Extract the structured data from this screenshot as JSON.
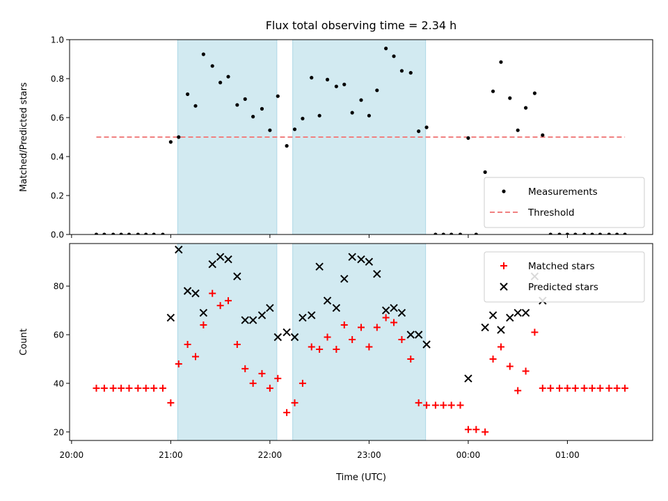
{
  "chart_data": {
    "type": "scatter",
    "title": "Flux total observing time = 2.34 h",
    "xlabel": "Time (UTC)",
    "x_unit": "hour of night (UTC); values above 24 fall after midnight",
    "xlim": [
      19.98,
      25.86
    ],
    "x_ticks": [
      20,
      21,
      22,
      23,
      24,
      25
    ],
    "x_tick_labels": [
      "20:00",
      "21:00",
      "22:00",
      "23:00",
      "00:00",
      "01:00"
    ],
    "shaded_intervals": [
      [
        21.07,
        22.07
      ],
      [
        22.23,
        23.57
      ]
    ],
    "shade_color": "#add8e6",
    "panels": [
      {
        "ylabel": "Matched/Predicted stars",
        "ylim": [
          0,
          1.0
        ],
        "y_ticks": [
          0.0,
          0.2,
          0.4,
          0.6,
          0.8,
          1.0
        ],
        "y_tick_labels": [
          "0.0",
          "0.2",
          "0.4",
          "0.6",
          "0.8",
          "1.0"
        ],
        "legend_position": "lower right",
        "threshold": {
          "name": "Threshold",
          "value": 0.5,
          "x_range": [
            20.25,
            25.58
          ],
          "color": "#f08080",
          "style": "dashed"
        },
        "series": [
          {
            "name": "Measurements",
            "marker": "dot",
            "color": "#000000",
            "points": [
              [
                20.25,
                0
              ],
              [
                20.33,
                0
              ],
              [
                20.42,
                0
              ],
              [
                20.5,
                0
              ],
              [
                20.58,
                0
              ],
              [
                20.67,
                0
              ],
              [
                20.75,
                0
              ],
              [
                20.83,
                0
              ],
              [
                20.92,
                0
              ],
              [
                21.0,
                0.475
              ],
              [
                21.08,
                0.5
              ],
              [
                21.17,
                0.72
              ],
              [
                21.25,
                0.66
              ],
              [
                21.33,
                0.925
              ],
              [
                21.42,
                0.865
              ],
              [
                21.5,
                0.78
              ],
              [
                21.58,
                0.81
              ],
              [
                21.67,
                0.665
              ],
              [
                21.75,
                0.695
              ],
              [
                21.83,
                0.605
              ],
              [
                21.92,
                0.645
              ],
              [
                22.0,
                0.535
              ],
              [
                22.08,
                0.71
              ],
              [
                22.17,
                0.455
              ],
              [
                22.25,
                0.54
              ],
              [
                22.33,
                0.595
              ],
              [
                22.42,
                0.805
              ],
              [
                22.5,
                0.61
              ],
              [
                22.58,
                0.795
              ],
              [
                22.67,
                0.76
              ],
              [
                22.75,
                0.77
              ],
              [
                22.83,
                0.625
              ],
              [
                22.92,
                0.69
              ],
              [
                23.0,
                0.61
              ],
              [
                23.08,
                0.74
              ],
              [
                23.17,
                0.955
              ],
              [
                23.25,
                0.915
              ],
              [
                23.33,
                0.84
              ],
              [
                23.42,
                0.83
              ],
              [
                23.5,
                0.53
              ],
              [
                23.58,
                0.55
              ],
              [
                23.67,
                0
              ],
              [
                23.75,
                0
              ],
              [
                23.83,
                0
              ],
              [
                23.92,
                0
              ],
              [
                24.0,
                0.495
              ],
              [
                24.08,
                0
              ],
              [
                24.17,
                0.32
              ],
              [
                24.25,
                0.735
              ],
              [
                24.33,
                0.885
              ],
              [
                24.42,
                0.7
              ],
              [
                24.5,
                0.535
              ],
              [
                24.58,
                0.65
              ],
              [
                24.67,
                0.725
              ],
              [
                24.75,
                0.51
              ],
              [
                24.83,
                0
              ],
              [
                24.92,
                0
              ],
              [
                25.0,
                0
              ],
              [
                25.08,
                0
              ],
              [
                25.17,
                0
              ],
              [
                25.25,
                0
              ],
              [
                25.33,
                0
              ],
              [
                25.42,
                0
              ],
              [
                25.5,
                0
              ],
              [
                25.58,
                0
              ]
            ]
          }
        ]
      },
      {
        "ylabel": "Count",
        "ylim": [
          16.5,
          97.5
        ],
        "y_ticks": [
          20,
          40,
          60,
          80
        ],
        "y_tick_labels": [
          "20",
          "40",
          "60",
          "80"
        ],
        "legend_position": "upper right",
        "series": [
          {
            "name": "Matched stars",
            "marker": "plus",
            "color": "#ff0000",
            "points": [
              [
                20.25,
                38
              ],
              [
                20.33,
                38
              ],
              [
                20.42,
                38
              ],
              [
                20.5,
                38
              ],
              [
                20.58,
                38
              ],
              [
                20.67,
                38
              ],
              [
                20.75,
                38
              ],
              [
                20.83,
                38
              ],
              [
                20.92,
                38
              ],
              [
                21.0,
                32
              ],
              [
                21.08,
                48
              ],
              [
                21.17,
                56
              ],
              [
                21.25,
                51
              ],
              [
                21.33,
                64
              ],
              [
                21.42,
                77
              ],
              [
                21.5,
                72
              ],
              [
                21.58,
                74
              ],
              [
                21.67,
                56
              ],
              [
                21.75,
                46
              ],
              [
                21.83,
                40
              ],
              [
                21.92,
                44
              ],
              [
                22.0,
                38
              ],
              [
                22.08,
                42
              ],
              [
                22.17,
                28
              ],
              [
                22.25,
                32
              ],
              [
                22.33,
                40
              ],
              [
                22.42,
                55
              ],
              [
                22.5,
                54
              ],
              [
                22.58,
                59
              ],
              [
                22.67,
                54
              ],
              [
                22.75,
                64
              ],
              [
                22.83,
                58
              ],
              [
                22.92,
                63
              ],
              [
                23.0,
                55
              ],
              [
                23.08,
                63
              ],
              [
                23.17,
                67
              ],
              [
                23.25,
                65
              ],
              [
                23.33,
                58
              ],
              [
                23.42,
                50
              ],
              [
                23.5,
                32
              ],
              [
                23.58,
                31
              ],
              [
                23.67,
                31
              ],
              [
                23.75,
                31
              ],
              [
                23.83,
                31
              ],
              [
                23.92,
                31
              ],
              [
                24.0,
                21
              ],
              [
                24.08,
                21
              ],
              [
                24.17,
                20
              ],
              [
                24.25,
                50
              ],
              [
                24.33,
                55
              ],
              [
                24.42,
                47
              ],
              [
                24.5,
                37
              ],
              [
                24.58,
                45
              ],
              [
                24.67,
                61
              ],
              [
                24.75,
                38
              ],
              [
                24.83,
                38
              ],
              [
                24.92,
                38
              ],
              [
                25.0,
                38
              ],
              [
                25.08,
                38
              ],
              [
                25.17,
                38
              ],
              [
                25.25,
                38
              ],
              [
                25.33,
                38
              ],
              [
                25.42,
                38
              ],
              [
                25.5,
                38
              ],
              [
                25.58,
                38
              ]
            ]
          },
          {
            "name": "Predicted stars",
            "marker": "x",
            "color": "#000000",
            "points": [
              [
                21.0,
                67
              ],
              [
                21.08,
                95
              ],
              [
                21.17,
                78
              ],
              [
                21.25,
                77
              ],
              [
                21.33,
                69
              ],
              [
                21.42,
                89
              ],
              [
                21.5,
                92
              ],
              [
                21.58,
                91
              ],
              [
                21.67,
                84
              ],
              [
                21.75,
                66
              ],
              [
                21.83,
                66
              ],
              [
                21.92,
                68
              ],
              [
                22.0,
                71
              ],
              [
                22.08,
                59
              ],
              [
                22.17,
                61
              ],
              [
                22.25,
                59
              ],
              [
                22.33,
                67
              ],
              [
                22.42,
                68
              ],
              [
                22.5,
                88
              ],
              [
                22.58,
                74
              ],
              [
                22.67,
                71
              ],
              [
                22.75,
                83
              ],
              [
                22.83,
                92
              ],
              [
                22.92,
                91
              ],
              [
                23.0,
                90
              ],
              [
                23.08,
                85
              ],
              [
                23.17,
                70
              ],
              [
                23.25,
                71
              ],
              [
                23.33,
                69
              ],
              [
                23.42,
                60
              ],
              [
                23.5,
                60
              ],
              [
                23.58,
                56
              ],
              [
                24.0,
                42
              ],
              [
                24.17,
                63
              ],
              [
                24.25,
                68
              ],
              [
                24.33,
                62
              ],
              [
                24.42,
                67
              ],
              [
                24.5,
                69
              ],
              [
                24.58,
                69
              ],
              [
                24.67,
                84
              ],
              [
                24.75,
                74
              ]
            ]
          }
        ]
      }
    ]
  }
}
